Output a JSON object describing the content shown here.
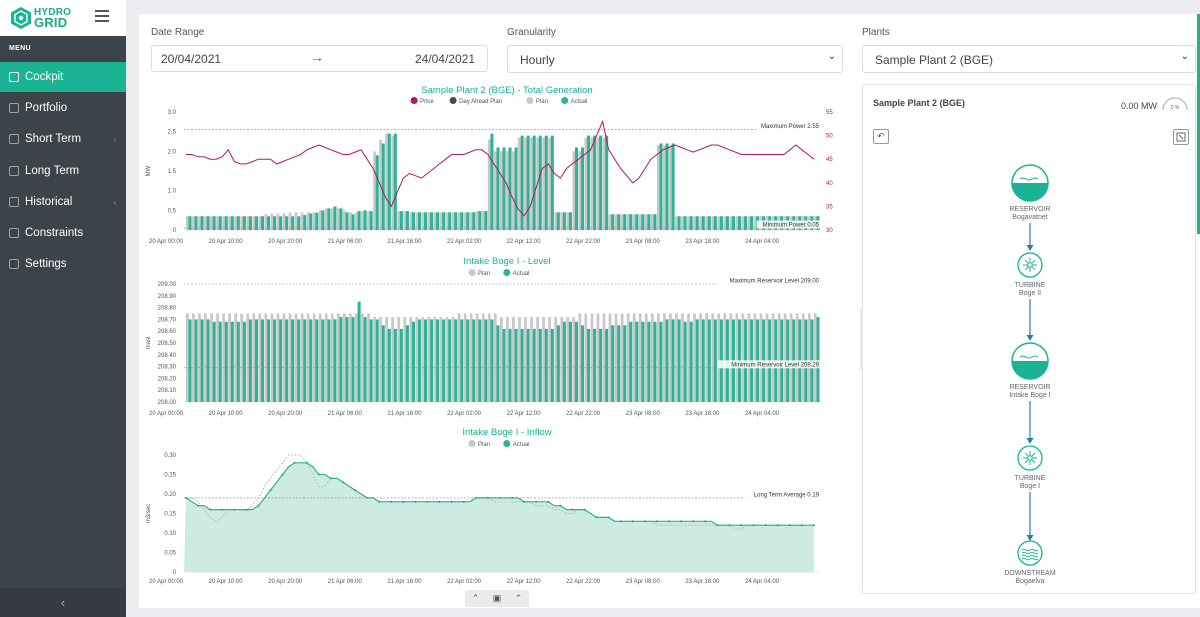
{
  "brand": {
    "line1": "HYDRO",
    "line2": "GRID"
  },
  "sidebar": {
    "menu_title": "MENU",
    "items": [
      {
        "label": "Cockpit",
        "active": true,
        "icon": "map-icon",
        "chevron": false
      },
      {
        "label": "Portfolio",
        "active": false,
        "icon": "grid-icon",
        "chevron": false
      },
      {
        "label": "Short Term",
        "active": false,
        "icon": "chart-icon",
        "chevron": true
      },
      {
        "label": "Long Term",
        "active": false,
        "icon": "chart-icon",
        "chevron": false
      },
      {
        "label": "Historical",
        "active": false,
        "icon": "history-icon",
        "chevron": true
      },
      {
        "label": "Constraints",
        "active": false,
        "icon": "sliders-icon",
        "chevron": false
      },
      {
        "label": "Settings",
        "active": false,
        "icon": "gear-icon",
        "chevron": false
      }
    ],
    "collapse_glyph": "‹"
  },
  "filters": {
    "date_range_label": "Date Range",
    "date_from": "20/04/2021",
    "date_arrow": "→",
    "date_to": "24/04/2021",
    "granularity_label": "Granularity",
    "granularity_value": "Hourly",
    "plants_label": "Plants",
    "plants_value": "Sample Plant 2 (BGE)"
  },
  "plant_panel": {
    "title": "Sample Plant 2 (BGE)",
    "power": "0.00 MW",
    "gauge_text": "0 %",
    "nodes": [
      {
        "kind": "reservoir",
        "type_label": "RESERVOIR",
        "name": "Bogavatnet"
      },
      {
        "kind": "turbine",
        "type_label": "TURBINE",
        "name": "Boge II"
      },
      {
        "kind": "reservoir",
        "type_label": "RESERVOIR",
        "name": "Intake Boge I"
      },
      {
        "kind": "turbine",
        "type_label": "TURBINE",
        "name": "Boge I"
      },
      {
        "kind": "downstream",
        "type_label": "DOWNSTREAM",
        "name": "Bogaelva"
      }
    ]
  },
  "colors": {
    "accent": "#1ab394",
    "actual": "#2fb396",
    "plan": "#c8c8c8",
    "price": "#b0186b",
    "day_ahead": "#4a4a4a",
    "sidebar_bg": "#3d4449"
  },
  "chart_data": [
    {
      "type": "bar",
      "title": "Sample Plant 2 (BGE) - Total Generation",
      "legend": [
        "Price",
        "Day Ahead Plan",
        "Plan",
        "Actual"
      ],
      "ylabel": "MW",
      "y2label": "EUR/MWh",
      "ylim": [
        0,
        3.0
      ],
      "y2lim": [
        30,
        55
      ],
      "yticks": [
        "3.0",
        "2.5",
        "2.0",
        "1.5",
        "1.0",
        "0.5",
        "0"
      ],
      "y2ticks": [
        "55",
        "50",
        "45",
        "40",
        "35",
        "30"
      ],
      "xticks": [
        "20 Apr 00:00",
        "20 Apr 10:00",
        "20 Apr 20:00",
        "21 Apr 06:00",
        "21 Apr 16:00",
        "22 Apr 02:00",
        "22 Apr 12:00",
        "22 Apr 22:00",
        "23 Apr 08:00",
        "23 Apr 18:00",
        "24 Apr 04:00"
      ],
      "ref_lines": [
        {
          "label": "Maximum Power 2.55",
          "value": 2.55
        },
        {
          "label": "Minimum Power 0.05",
          "value": 0.05
        }
      ],
      "series": [
        {
          "name": "Actual",
          "values": [
            0.35,
            0.35,
            0.35,
            0.35,
            0.35,
            0.35,
            0.35,
            0.35,
            0.35,
            0.35,
            0.35,
            0.35,
            0.35,
            0.35,
            0.35,
            0.35,
            0.35,
            0.35,
            0.35,
            0.38,
            0.42,
            0.44,
            0.5,
            0.55,
            0.6,
            0.55,
            0.45,
            0.4,
            0.48,
            0.5,
            0.48,
            1.9,
            2.2,
            2.45,
            2.45,
            0.48,
            0.48,
            0.45,
            0.45,
            0.45,
            0.45,
            0.45,
            0.45,
            0.45,
            0.45,
            0.45,
            0.45,
            0.45,
            0.48,
            0.48,
            2.45,
            2.1,
            2.1,
            2.1,
            2.1,
            2.4,
            2.4,
            2.4,
            2.4,
            2.4,
            2.4,
            0.45,
            0.45,
            0.45,
            2.1,
            2.1,
            2.4,
            2.4,
            2.4,
            2.4,
            0.4,
            0.4,
            0.4,
            0.4,
            0.4,
            0.4,
            0.4,
            0.4,
            2.2,
            2.2,
            2.2,
            0.35,
            0.35,
            0.35,
            0.35,
            0.35,
            0.35,
            0.35,
            0.35,
            0.35,
            0.35,
            0.35,
            0.35,
            0.35,
            0.35,
            0.35,
            0.35,
            0.35,
            0.35,
            0.35,
            0.35,
            0.35,
            0.35,
            0.35,
            0.35
          ]
        },
        {
          "name": "Plan",
          "values": [
            0.35,
            0.35,
            0.35,
            0.35,
            0.35,
            0.35,
            0.35,
            0.35,
            0.35,
            0.35,
            0.35,
            0.35,
            0.35,
            0.4,
            0.42,
            0.42,
            0.42,
            0.45,
            0.45,
            0.45,
            0.45,
            0.45,
            0.5,
            0.55,
            0.55,
            0.55,
            0.5,
            0.45,
            0.45,
            0.48,
            0.48,
            2.0,
            2.3,
            2.45,
            2.4,
            0.48,
            0.48,
            0.45,
            0.45,
            0.45,
            0.45,
            0.45,
            0.45,
            0.45,
            0.45,
            0.45,
            0.45,
            0.45,
            0.48,
            0.48,
            2.3,
            2.0,
            2.0,
            2.0,
            2.0,
            2.35,
            2.35,
            2.35,
            2.35,
            2.35,
            2.35,
            0.45,
            0.45,
            0.45,
            2.0,
            2.0,
            2.35,
            2.35,
            2.35,
            2.35,
            0.4,
            0.4,
            0.4,
            0.4,
            0.4,
            0.4,
            0.4,
            0.4,
            2.15,
            2.15,
            2.15,
            0.35,
            0.35,
            0.35,
            0.35,
            0.35,
            0.35,
            0.35,
            0.35,
            0.35,
            0.35,
            0.35,
            0.35,
            0.35,
            0.35,
            0.35,
            0.35,
            0.35,
            0.35,
            0.35,
            0.35,
            0.35,
            0.35,
            0.35,
            0.35
          ]
        },
        {
          "name": "Price",
          "values": [
            46,
            46,
            45.5,
            45.5,
            45,
            45,
            45.5,
            47,
            44.5,
            44,
            44,
            44.5,
            45,
            45,
            45,
            44,
            44.5,
            45,
            45.5,
            46,
            47,
            47.5,
            48,
            47.5,
            47,
            46.5,
            46,
            46,
            46.5,
            47,
            45,
            43,
            40,
            37,
            35,
            38,
            41,
            42,
            41.5,
            41,
            42,
            43,
            44,
            45,
            46,
            46,
            46,
            46.5,
            47,
            47,
            46,
            44,
            42,
            40,
            37,
            34.5,
            33,
            35,
            39,
            43,
            44,
            42,
            41,
            43,
            44,
            45,
            46,
            47,
            50,
            53,
            47,
            45,
            43,
            41.5,
            40,
            41,
            43,
            45,
            46,
            47,
            47.5,
            48,
            47.5,
            47,
            46.5,
            47,
            47.5,
            48,
            48,
            47.5,
            47,
            46.5,
            46,
            46,
            46,
            46,
            46,
            46,
            46,
            46,
            47,
            48,
            47,
            46,
            45
          ]
        }
      ]
    },
    {
      "type": "bar",
      "title": "Intake Boge I - Level",
      "legend": [
        "Plan",
        "Actual"
      ],
      "ylabel": "masl",
      "ylim": [
        208.0,
        209.0
      ],
      "yticks": [
        "209.00",
        "208.90",
        "208.80",
        "208.70",
        "208.60",
        "208.50",
        "208.40",
        "208.30",
        "208.20",
        "208.10",
        "208.00"
      ],
      "xticks": [
        "20 Apr 00:00",
        "20 Apr 10:00",
        "20 Apr 20:00",
        "21 Apr 06:00",
        "21 Apr 16:00",
        "22 Apr 02:00",
        "22 Apr 12:00",
        "22 Apr 22:00",
        "23 Apr 08:00",
        "23 Apr 18:00",
        "24 Apr 04:00"
      ],
      "ref_lines": [
        {
          "label": "Maximum Reservoir Level 209.00",
          "value": 209.0
        },
        {
          "label": "Minimum Reservoir Level 208.29",
          "value": 208.29
        }
      ],
      "series": [
        {
          "name": "Actual",
          "values": [
            208.7,
            208.7,
            208.7,
            208.7,
            208.68,
            208.68,
            208.68,
            208.68,
            208.68,
            208.68,
            208.7,
            208.7,
            208.7,
            208.7,
            208.7,
            208.7,
            208.7,
            208.7,
            208.7,
            208.7,
            208.7,
            208.7,
            208.7,
            208.7,
            208.7,
            208.72,
            208.72,
            208.72,
            208.85,
            208.72,
            208.7,
            208.7,
            208.65,
            208.62,
            208.62,
            208.62,
            208.65,
            208.68,
            208.7,
            208.7,
            208.7,
            208.7,
            208.7,
            208.7,
            208.7,
            208.7,
            208.7,
            208.7,
            208.7,
            208.7,
            208.7,
            208.65,
            208.62,
            208.62,
            208.62,
            208.62,
            208.62,
            208.62,
            208.62,
            208.62,
            208.62,
            208.65,
            208.68,
            208.68,
            208.68,
            208.65,
            208.62,
            208.62,
            208.62,
            208.62,
            208.65,
            208.65,
            208.65,
            208.68,
            208.68,
            208.68,
            208.68,
            208.68,
            208.68,
            208.7,
            208.7,
            208.7,
            208.68,
            208.68,
            208.7,
            208.7,
            208.7,
            208.7,
            208.7,
            208.7,
            208.7,
            208.7,
            208.7,
            208.7,
            208.7,
            208.7,
            208.7,
            208.7,
            208.7,
            208.7,
            208.7,
            208.7,
            208.7,
            208.7,
            208.72
          ]
        },
        {
          "name": "Plan",
          "values": [
            208.75,
            208.75,
            208.75,
            208.75,
            208.75,
            208.75,
            208.75,
            208.75,
            208.75,
            208.75,
            208.75,
            208.75,
            208.75,
            208.75,
            208.75,
            208.75,
            208.75,
            208.75,
            208.75,
            208.75,
            208.75,
            208.75,
            208.75,
            208.75,
            208.75,
            208.75,
            208.75,
            208.75,
            208.75,
            208.75,
            208.75,
            208.72,
            208.72,
            208.72,
            208.72,
            208.72,
            208.72,
            208.72,
            208.72,
            208.72,
            208.72,
            208.72,
            208.72,
            208.72,
            208.72,
            208.75,
            208.75,
            208.75,
            208.75,
            208.75,
            208.75,
            208.75,
            208.72,
            208.72,
            208.72,
            208.72,
            208.72,
            208.72,
            208.72,
            208.72,
            208.72,
            208.72,
            208.72,
            208.72,
            208.72,
            208.75,
            208.75,
            208.75,
            208.75,
            208.75,
            208.75,
            208.75,
            208.75,
            208.75,
            208.75,
            208.75,
            208.75,
            208.75,
            208.75,
            208.75,
            208.75,
            208.75,
            208.75,
            208.75,
            208.75,
            208.75,
            208.75,
            208.75,
            208.75,
            208.75,
            208.75,
            208.75,
            208.75,
            208.75,
            208.75,
            208.75,
            208.75,
            208.75,
            208.75,
            208.75,
            208.75,
            208.75,
            208.75,
            208.75,
            208.75
          ]
        }
      ]
    },
    {
      "type": "area",
      "title": "Intake Boge I - Inflow",
      "legend": [
        "Plan",
        "Actual"
      ],
      "ylabel": "m3/sec",
      "ylim": [
        0,
        0.3
      ],
      "yticks": [
        "0.30",
        "0.25",
        "0.20",
        "0.15",
        "0.10",
        "0.05",
        "0"
      ],
      "xticks": [
        "20 Apr 00:00",
        "20 Apr 10:00",
        "20 Apr 20:00",
        "21 Apr 06:00",
        "21 Apr 16:00",
        "22 Apr 02:00",
        "22 Apr 12:00",
        "22 Apr 22:00",
        "23 Apr 08:00",
        "23 Apr 18:00",
        "24 Apr 04:00"
      ],
      "ref_lines": [
        {
          "label": "Long Term Average 0.19",
          "value": 0.19
        }
      ],
      "series": [
        {
          "name": "Actual",
          "values": [
            0.19,
            0.18,
            0.17,
            0.17,
            0.16,
            0.16,
            0.16,
            0.16,
            0.16,
            0.16,
            0.16,
            0.16,
            0.17,
            0.19,
            0.21,
            0.23,
            0.25,
            0.27,
            0.28,
            0.28,
            0.28,
            0.27,
            0.25,
            0.25,
            0.24,
            0.24,
            0.23,
            0.22,
            0.21,
            0.2,
            0.19,
            0.19,
            0.18,
            0.18,
            0.18,
            0.18,
            0.18,
            0.18,
            0.18,
            0.18,
            0.18,
            0.18,
            0.18,
            0.18,
            0.18,
            0.18,
            0.18,
            0.18,
            0.19,
            0.19,
            0.19,
            0.19,
            0.19,
            0.19,
            0.19,
            0.19,
            0.18,
            0.18,
            0.18,
            0.18,
            0.18,
            0.17,
            0.17,
            0.16,
            0.16,
            0.16,
            0.16,
            0.15,
            0.14,
            0.14,
            0.14,
            0.13,
            0.13,
            0.13,
            0.13,
            0.13,
            0.13,
            0.13,
            0.13,
            0.13,
            0.13,
            0.13,
            0.13,
            0.13,
            0.13,
            0.13,
            0.13,
            0.13,
            0.12,
            0.12,
            0.12,
            0.12,
            0.12,
            0.12,
            0.12,
            0.12,
            0.12,
            0.12,
            0.12,
            0.12,
            0.12,
            0.12,
            0.12,
            0.12,
            0.12
          ]
        },
        {
          "name": "Plan",
          "values": [
            0.19,
            0.19,
            0.18,
            0.16,
            0.14,
            0.13,
            0.14,
            0.16,
            0.16,
            0.16,
            0.16,
            0.17,
            0.19,
            0.22,
            0.24,
            0.26,
            0.28,
            0.3,
            0.3,
            0.3,
            0.28,
            0.25,
            0.22,
            0.22,
            0.24,
            0.24,
            0.23,
            0.22,
            0.21,
            0.2,
            0.19,
            0.19,
            0.18,
            0.18,
            0.18,
            0.18,
            0.18,
            0.18,
            0.18,
            0.18,
            0.18,
            0.18,
            0.18,
            0.18,
            0.18,
            0.18,
            0.18,
            0.18,
            0.19,
            0.19,
            0.19,
            0.18,
            0.18,
            0.18,
            0.18,
            0.18,
            0.18,
            0.18,
            0.17,
            0.17,
            0.17,
            0.16,
            0.16,
            0.15,
            0.15,
            0.16,
            0.16,
            0.15,
            0.14,
            0.14,
            0.14,
            0.13,
            0.13,
            0.13,
            0.13,
            0.13,
            0.13,
            0.13,
            0.12,
            0.12,
            0.12,
            0.12,
            0.12,
            0.12,
            0.12,
            0.12,
            0.12,
            0.12,
            0.12,
            0.12,
            0.12,
            0.11,
            0.11,
            0.12,
            0.12,
            0.12,
            0.12,
            0.12,
            0.12,
            0.12,
            0.12,
            0.12,
            0.12,
            0.12,
            0.12
          ]
        }
      ]
    }
  ]
}
